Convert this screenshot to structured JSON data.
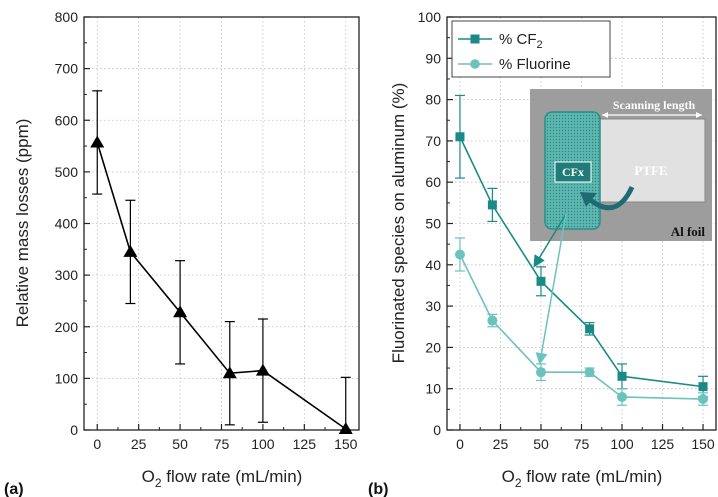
{
  "panels": {
    "a": "(a)",
    "b": "(b)"
  },
  "chart_data": [
    {
      "type": "line",
      "panel": "(a)",
      "xlabel_prefix": "O",
      "xlabel_sub": "2",
      "xlabel_suffix": " flow rate (mL/min)",
      "ylabel": "Relative mass losses (ppm)",
      "xlim": [
        -8,
        158
      ],
      "ylim": [
        0,
        800
      ],
      "xticks": [
        0,
        25,
        50,
        75,
        100,
        125,
        150
      ],
      "yticks": [
        0,
        100,
        200,
        300,
        400,
        500,
        600,
        700,
        800
      ],
      "grid": "dotted",
      "series": [
        {
          "marker": "triangle",
          "color": "#000000",
          "x": [
            0,
            20,
            50,
            80,
            100,
            150
          ],
          "y": [
            557,
            345,
            228,
            110,
            115,
            2
          ],
          "err": [
            100,
            100,
            100,
            100,
            100,
            100
          ]
        }
      ]
    },
    {
      "type": "line",
      "panel": "(b)",
      "xlabel_prefix": "O",
      "xlabel_sub": "2",
      "xlabel_suffix": " flow rate (mL/min)",
      "ylabel": "Fluorinated species on aluminum (%)",
      "xlim": [
        -8,
        158
      ],
      "ylim": [
        0,
        100
      ],
      "xticks": [
        0,
        25,
        50,
        75,
        100,
        125,
        150
      ],
      "yticks": [
        0,
        10,
        20,
        30,
        40,
        50,
        60,
        70,
        80,
        90,
        100
      ],
      "grid": "dotted",
      "legend_position": "top-left",
      "series": [
        {
          "name_prefix": "% CF",
          "name_sub": "2",
          "marker": "square",
          "color": "#1a8a86",
          "x": [
            0,
            20,
            50,
            80,
            100,
            150
          ],
          "y": [
            71,
            54.5,
            36,
            24.5,
            13,
            10.5
          ],
          "err": [
            10,
            4,
            3.5,
            1.5,
            3,
            2.5
          ]
        },
        {
          "name": "% Fluorine",
          "marker": "circle",
          "color": "#6cc2bc",
          "x": [
            0,
            20,
            50,
            80,
            100,
            150
          ],
          "y": [
            42.5,
            26.5,
            14,
            14,
            8,
            7.5
          ],
          "err": [
            4,
            1.5,
            2,
            1,
            2,
            1.5
          ]
        }
      ],
      "inset": {
        "scan_label": "Scanning length",
        "cfx_label": "CFx",
        "ptfe_label": "PTFE",
        "foil_label": "Al foil"
      }
    }
  ]
}
